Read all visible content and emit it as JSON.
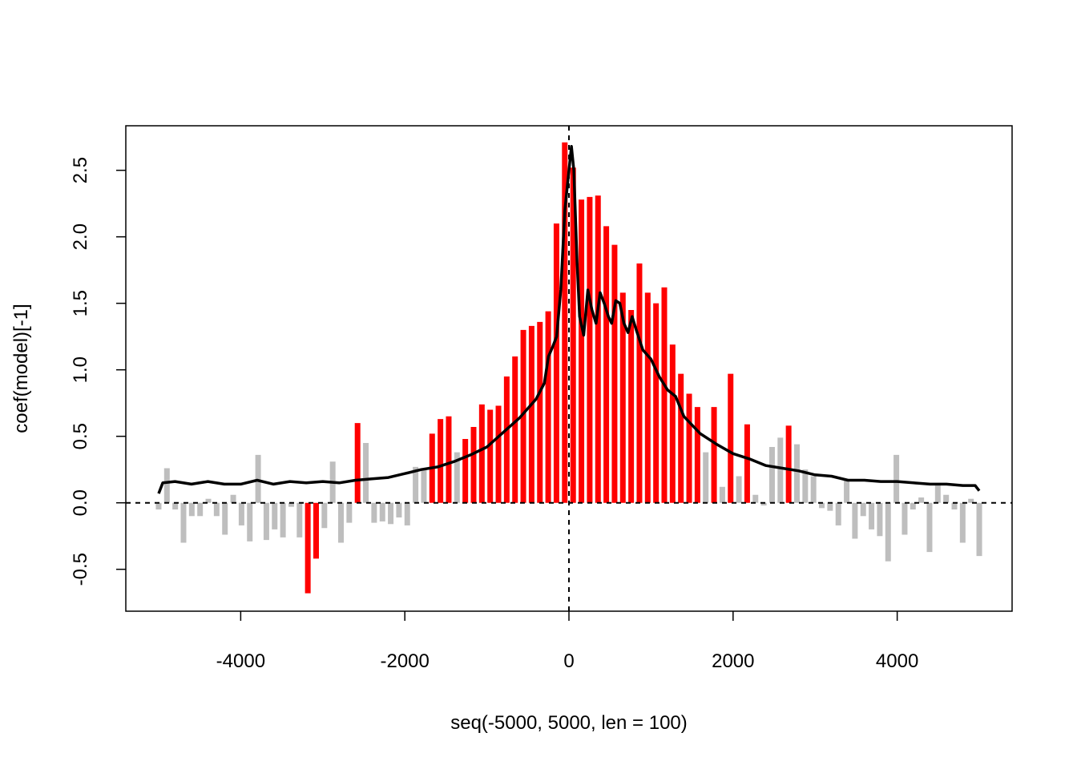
{
  "chart_data": {
    "type": "bar",
    "xlabel": "seq(-5000, 5000, len = 100)",
    "ylabel": "coef(model)[-1]",
    "xlim": [
      -5400,
      5400
    ],
    "ylim": [
      -0.815,
      2.835
    ],
    "xticks": [
      -4000,
      -2000,
      0,
      2000,
      4000
    ],
    "yticks": [
      -0.5,
      {
        "value": 0,
        "label": "0.0"
      },
      0.5,
      {
        "value": 1,
        "label": "1.0"
      },
      1.5,
      {
        "value": 2,
        "label": "2.0"
      },
      2.5
    ],
    "hline": 0,
    "vline": 0,
    "x": [
      -5000,
      -4899,
      -4798,
      -4697,
      -4596,
      -4495,
      -4394,
      -4293,
      -4192,
      -4091,
      -3990,
      -3889,
      -3788,
      -3687,
      -3586,
      -3485,
      -3384,
      -3283,
      -3182,
      -3081,
      -2980,
      -2879,
      -2778,
      -2677,
      -2576,
      -2475,
      -2374,
      -2273,
      -2172,
      -2071,
      -1970,
      -1869,
      -1768,
      -1667,
      -1566,
      -1465,
      -1364,
      -1263,
      -1162,
      -1061,
      -960,
      -859,
      -758,
      -657,
      -556,
      -455,
      -354,
      -253,
      -152,
      -51,
      51,
      152,
      253,
      354,
      455,
      556,
      657,
      758,
      859,
      960,
      1061,
      1162,
      1263,
      1364,
      1465,
      1566,
      1667,
      1768,
      1869,
      1970,
      2071,
      2172,
      2273,
      2374,
      2475,
      2576,
      2677,
      2778,
      2879,
      2980,
      3081,
      3182,
      3283,
      3384,
      3485,
      3586,
      3687,
      3788,
      3889,
      3990,
      4091,
      4192,
      4293,
      4394,
      4495,
      4596,
      4697,
      4798,
      4899,
      5000
    ],
    "values": [
      -0.05,
      0.26,
      -0.05,
      -0.3,
      -0.1,
      -0.1,
      0.03,
      -0.1,
      -0.24,
      0.06,
      -0.17,
      -0.29,
      0.36,
      -0.28,
      -0.2,
      -0.26,
      -0.03,
      -0.26,
      -0.68,
      -0.42,
      -0.19,
      0.31,
      -0.3,
      -0.15,
      0.6,
      0.45,
      -0.15,
      -0.14,
      -0.16,
      -0.11,
      -0.17,
      0.27,
      0.25,
      0.52,
      0.63,
      0.65,
      0.38,
      0.48,
      0.57,
      0.74,
      0.7,
      0.73,
      0.95,
      1.1,
      1.3,
      1.33,
      1.36,
      1.44,
      2.1,
      2.71,
      2.52,
      2.28,
      2.3,
      2.31,
      2.08,
      1.94,
      1.58,
      1.45,
      1.8,
      1.58,
      1.5,
      1.62,
      1.19,
      0.97,
      0.82,
      0.72,
      0.38,
      0.72,
      0.12,
      0.97,
      0.2,
      0.59,
      0.06,
      -0.02,
      0.42,
      0.49,
      0.58,
      0.44,
      0.25,
      0.2,
      -0.04,
      -0.06,
      -0.17,
      0.17,
      -0.27,
      -0.1,
      -0.2,
      -0.25,
      -0.44,
      0.36,
      -0.24,
      -0.05,
      0.04,
      -0.37,
      0.13,
      0.06,
      -0.05,
      -0.3,
      0.03,
      -0.4
    ],
    "colors": [
      "#bebebe",
      "#bebebe",
      "#bebebe",
      "#bebebe",
      "#bebebe",
      "#bebebe",
      "#bebebe",
      "#bebebe",
      "#bebebe",
      "#bebebe",
      "#bebebe",
      "#bebebe",
      "#bebebe",
      "#bebebe",
      "#bebebe",
      "#bebebe",
      "#bebebe",
      "#bebebe",
      "#ff0000",
      "#ff0000",
      "#bebebe",
      "#bebebe",
      "#bebebe",
      "#bebebe",
      "#ff0000",
      "#bebebe",
      "#bebebe",
      "#bebebe",
      "#bebebe",
      "#bebebe",
      "#bebebe",
      "#bebebe",
      "#bebebe",
      "#ff0000",
      "#ff0000",
      "#ff0000",
      "#bebebe",
      "#ff0000",
      "#ff0000",
      "#ff0000",
      "#ff0000",
      "#ff0000",
      "#ff0000",
      "#ff0000",
      "#ff0000",
      "#ff0000",
      "#ff0000",
      "#ff0000",
      "#ff0000",
      "#ff0000",
      "#ff0000",
      "#ff0000",
      "#ff0000",
      "#ff0000",
      "#ff0000",
      "#ff0000",
      "#ff0000",
      "#ff0000",
      "#ff0000",
      "#ff0000",
      "#ff0000",
      "#ff0000",
      "#ff0000",
      "#ff0000",
      "#ff0000",
      "#ff0000",
      "#bebebe",
      "#ff0000",
      "#bebebe",
      "#ff0000",
      "#bebebe",
      "#ff0000",
      "#bebebe",
      "#bebebe",
      "#bebebe",
      "#bebebe",
      "#ff0000",
      "#bebebe",
      "#bebebe",
      "#bebebe",
      "#bebebe",
      "#bebebe",
      "#bebebe",
      "#bebebe",
      "#bebebe",
      "#bebebe",
      "#bebebe",
      "#bebebe",
      "#bebebe",
      "#bebebe",
      "#bebebe",
      "#bebebe",
      "#bebebe",
      "#bebebe",
      "#bebebe",
      "#bebebe",
      "#bebebe",
      "#bebebe",
      "#bebebe",
      "#bebebe"
    ],
    "smooth": {
      "color": "#000000",
      "x": [
        -5000,
        -4950,
        -4800,
        -4600,
        -4400,
        -4200,
        -4000,
        -3800,
        -3600,
        -3400,
        -3200,
        -3000,
        -2800,
        -2600,
        -2400,
        -2200,
        -2000,
        -1800,
        -1600,
        -1400,
        -1200,
        -1000,
        -800,
        -600,
        -400,
        -300,
        -250,
        -200,
        -150,
        -100,
        -50,
        0,
        30,
        60,
        100,
        130,
        180,
        230,
        280,
        330,
        380,
        430,
        480,
        520,
        570,
        620,
        670,
        720,
        770,
        820,
        900,
        1000,
        1100,
        1200,
        1300,
        1400,
        1600,
        1800,
        2000,
        2200,
        2400,
        2600,
        2800,
        3000,
        3200,
        3400,
        3600,
        3800,
        4000,
        4200,
        4400,
        4600,
        4800,
        4950,
        5000
      ],
      "values": [
        0.07,
        0.15,
        0.16,
        0.14,
        0.16,
        0.14,
        0.14,
        0.17,
        0.14,
        0.16,
        0.15,
        0.16,
        0.15,
        0.17,
        0.18,
        0.19,
        0.22,
        0.25,
        0.27,
        0.31,
        0.36,
        0.42,
        0.53,
        0.64,
        0.78,
        0.9,
        1.1,
        1.17,
        1.25,
        1.6,
        2.2,
        2.5,
        2.68,
        2.5,
        1.8,
        1.4,
        1.26,
        1.6,
        1.45,
        1.35,
        1.58,
        1.5,
        1.4,
        1.35,
        1.52,
        1.5,
        1.35,
        1.28,
        1.4,
        1.3,
        1.15,
        1.08,
        0.95,
        0.85,
        0.8,
        0.65,
        0.52,
        0.44,
        0.37,
        0.33,
        0.28,
        0.26,
        0.24,
        0.21,
        0.2,
        0.17,
        0.17,
        0.16,
        0.16,
        0.15,
        0.14,
        0.14,
        0.13,
        0.13,
        0.09
      ]
    }
  }
}
